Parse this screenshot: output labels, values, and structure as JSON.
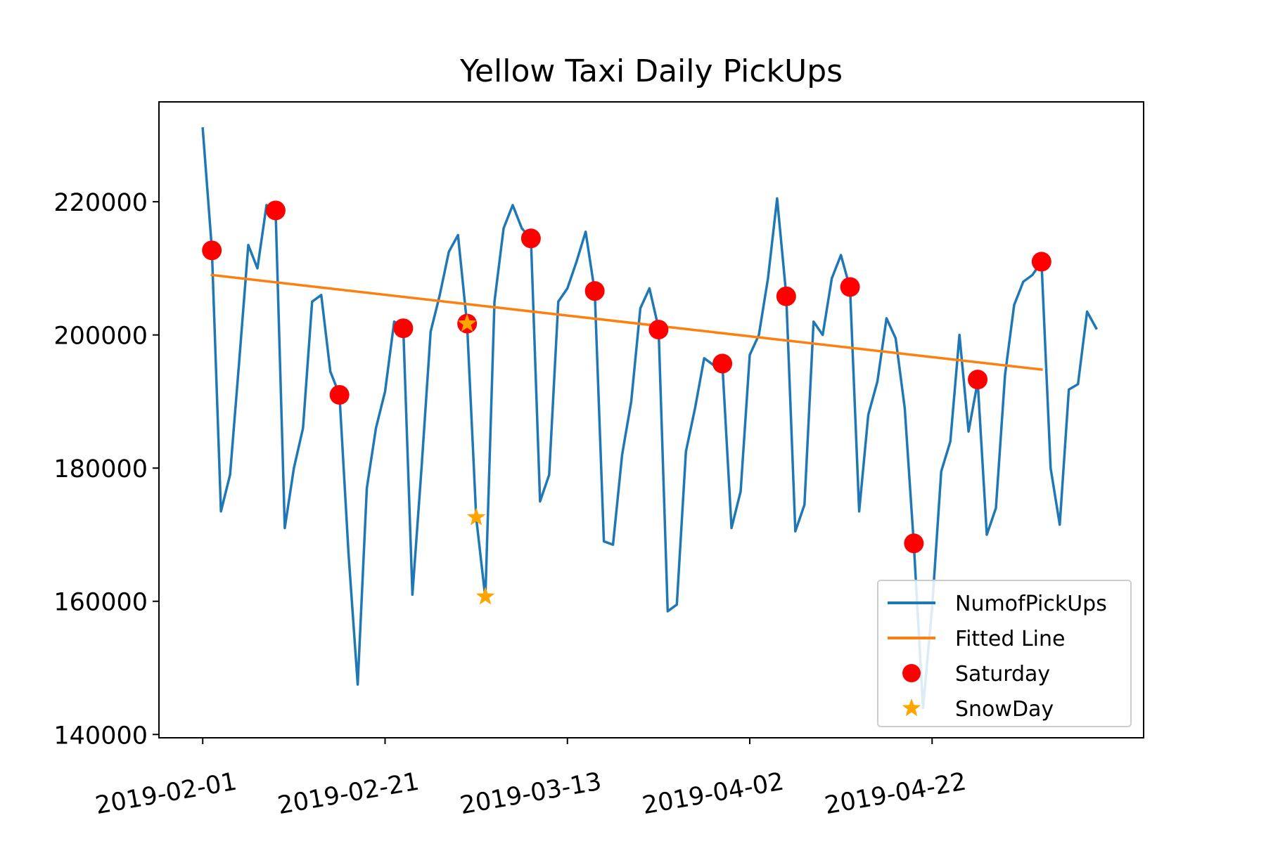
{
  "chart_data": {
    "type": "line",
    "title": "Yellow Taxi Daily PickUps",
    "xlabel": "",
    "ylabel": "",
    "x_start": "2019-02-01",
    "ylim": [
      139500,
      235000
    ],
    "xlim_days": [
      -4.8,
      103.2
    ],
    "x_ticks": [
      "2019-02-01",
      "2019-02-21",
      "2019-03-13",
      "2019-04-02",
      "2019-04-22"
    ],
    "y_ticks": [
      "140000",
      "160000",
      "180000",
      "200000",
      "220000"
    ],
    "grid": false,
    "legend_position": "lower-right",
    "colors": {
      "pickups": "#1f77b4",
      "fitted": "#ff7f0e",
      "saturday": "#ff0000",
      "snowday": "#ffa500"
    },
    "series": [
      {
        "name": "NumofPickUps",
        "kind": "line",
        "dates": [
          "2019-02-01",
          "2019-02-02",
          "2019-02-03",
          "2019-02-04",
          "2019-02-05",
          "2019-02-06",
          "2019-02-07",
          "2019-02-08",
          "2019-02-09",
          "2019-02-10",
          "2019-02-11",
          "2019-02-12",
          "2019-02-13",
          "2019-02-14",
          "2019-02-15",
          "2019-02-16",
          "2019-02-17",
          "2019-02-18",
          "2019-02-19",
          "2019-02-20",
          "2019-02-21",
          "2019-02-22",
          "2019-02-23",
          "2019-02-24",
          "2019-02-25",
          "2019-02-26",
          "2019-02-27",
          "2019-02-28",
          "2019-03-01",
          "2019-03-02",
          "2019-03-03",
          "2019-03-04",
          "2019-03-05",
          "2019-03-06",
          "2019-03-07",
          "2019-03-08",
          "2019-03-09",
          "2019-03-10",
          "2019-03-11",
          "2019-03-12",
          "2019-03-13",
          "2019-03-14",
          "2019-03-15",
          "2019-03-16",
          "2019-03-17",
          "2019-03-18",
          "2019-03-19",
          "2019-03-20",
          "2019-03-21",
          "2019-03-22",
          "2019-03-23",
          "2019-03-24",
          "2019-03-25",
          "2019-03-26",
          "2019-03-27",
          "2019-03-28",
          "2019-03-29",
          "2019-03-30",
          "2019-03-31",
          "2019-04-01",
          "2019-04-02",
          "2019-04-03",
          "2019-04-04",
          "2019-04-05",
          "2019-04-06",
          "2019-04-07",
          "2019-04-08",
          "2019-04-09",
          "2019-04-10",
          "2019-04-11",
          "2019-04-12",
          "2019-04-13",
          "2019-04-14",
          "2019-04-15",
          "2019-04-16",
          "2019-04-17",
          "2019-04-18",
          "2019-04-19",
          "2019-04-20",
          "2019-04-21",
          "2019-04-22",
          "2019-04-23",
          "2019-04-24",
          "2019-04-25",
          "2019-04-26",
          "2019-04-27",
          "2019-04-28",
          "2019-04-29",
          "2019-04-30",
          "2019-05-01",
          "2019-05-02",
          "2019-05-03",
          "2019-05-04",
          "2019-05-05",
          "2019-05-06",
          "2019-05-07",
          "2019-05-08",
          "2019-05-09",
          "2019-05-10"
        ],
        "values": [
          231000,
          213000,
          173500,
          179000,
          196000,
          213500,
          210000,
          219500,
          218500,
          171000,
          180000,
          186000,
          205000,
          206000,
          194500,
          191000,
          167000,
          147500,
          177000,
          186000,
          191500,
          202000,
          201000,
          161000,
          180000,
          200500,
          206000,
          212500,
          215000,
          201500,
          172500,
          160500,
          205000,
          216000,
          219500,
          216000,
          214500,
          175000,
          179000,
          205000,
          207000,
          211000,
          215500,
          206500,
          169000,
          168500,
          182000,
          190000,
          204000,
          207000,
          201000,
          158500,
          159500,
          182500,
          189000,
          196500,
          195500,
          195500,
          171000,
          176500,
          197000,
          200000,
          208500,
          220500,
          206000,
          170500,
          174500,
          202000,
          200000,
          208500,
          212000,
          207000,
          173500,
          188000,
          193000,
          202500,
          199500,
          189000,
          168500,
          144000,
          159000,
          179500,
          184000,
          200000,
          185500,
          193000,
          170000,
          174000,
          194000,
          204500,
          208000,
          209000,
          211000,
          180000,
          171500,
          191800,
          192600,
          203500,
          201000
        ]
      },
      {
        "name": "Fitted Line",
        "kind": "line",
        "dates": [
          "2019-02-02",
          "2019-05-04"
        ],
        "values": [
          209000,
          194800
        ]
      },
      {
        "name": "Saturday",
        "kind": "scatter-circle",
        "dates": [
          "2019-02-02",
          "2019-02-09",
          "2019-02-16",
          "2019-02-23",
          "2019-03-02",
          "2019-03-09",
          "2019-03-16",
          "2019-03-23",
          "2019-03-30",
          "2019-04-06",
          "2019-04-13",
          "2019-04-20",
          "2019-04-27",
          "2019-05-04"
        ],
        "values": [
          212700,
          218700,
          191000,
          201000,
          201700,
          214500,
          206600,
          200800,
          195700,
          205800,
          207200,
          168700,
          193300,
          211000
        ]
      },
      {
        "name": "SnowDay",
        "kind": "scatter-star",
        "dates": [
          "2019-03-02",
          "2019-03-03",
          "2019-03-04"
        ],
        "values": [
          201700,
          172600,
          160700
        ]
      }
    ]
  }
}
